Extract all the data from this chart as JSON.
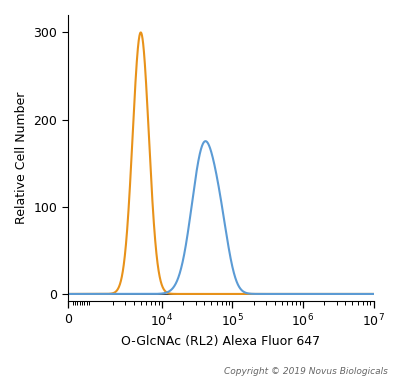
{
  "title": "",
  "xlabel": "O-GlcNAc (RL2) Alexa Fluor 647",
  "ylabel": "Relative Cell Number",
  "copyright": "Copyright © 2019 Novus Biologicals",
  "ylim": [
    -8,
    320
  ],
  "yticks": [
    0,
    100,
    200,
    300
  ],
  "background_color": "#ffffff",
  "orange_color": "#E8921A",
  "blue_color": "#5B9BD5",
  "orange_peak_log": 3.7,
  "orange_peak_height": 300,
  "orange_sigma_log": 0.115,
  "blue_peak_log": 4.6,
  "blue_peak_height": 170,
  "blue_sigma_log": 0.175,
  "blue_shoulder_log": 4.85,
  "blue_shoulder_height": 40,
  "blue_shoulder_sigma": 0.12,
  "linthresh": 1000,
  "xmin": 0,
  "xmax": 10000000.0
}
